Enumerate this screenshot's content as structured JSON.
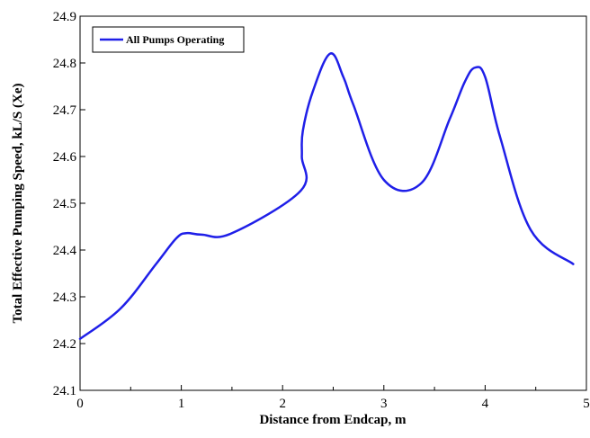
{
  "chart_data": {
    "type": "line",
    "xlabel": "Distance from Endcap, m",
    "ylabel": "Total Effective Pumping Speed, kL/S (Xe)",
    "xlim": [
      0,
      5
    ],
    "ylim": [
      24.1,
      24.9
    ],
    "x_ticks": [
      "0",
      "1",
      "2",
      "3",
      "4",
      "5"
    ],
    "y_ticks": [
      "24.1",
      "24.2",
      "24.3",
      "24.4",
      "24.5",
      "24.6",
      "24.7",
      "24.8",
      "24.9"
    ],
    "grid": false,
    "legend_position": "top-left",
    "series": [
      {
        "name": "All Pumps Operating",
        "color": "#1f1fe8",
        "x": [
          0,
          0.4,
          0.75,
          0.95,
          1.05,
          1.2,
          1.5,
          2.18,
          2.19,
          2.2,
          2.3,
          2.47,
          2.6,
          2.7,
          3.0,
          3.37,
          3.65,
          3.8,
          3.9,
          4.0,
          4.15,
          4.45,
          4.87
        ],
        "y": [
          24.21,
          24.275,
          24.37,
          24.425,
          24.436,
          24.433,
          24.436,
          24.527,
          24.6,
          24.655,
          24.74,
          24.82,
          24.77,
          24.71,
          24.55,
          24.543,
          24.68,
          24.76,
          24.79,
          24.77,
          24.64,
          24.443,
          24.37
        ]
      }
    ]
  }
}
